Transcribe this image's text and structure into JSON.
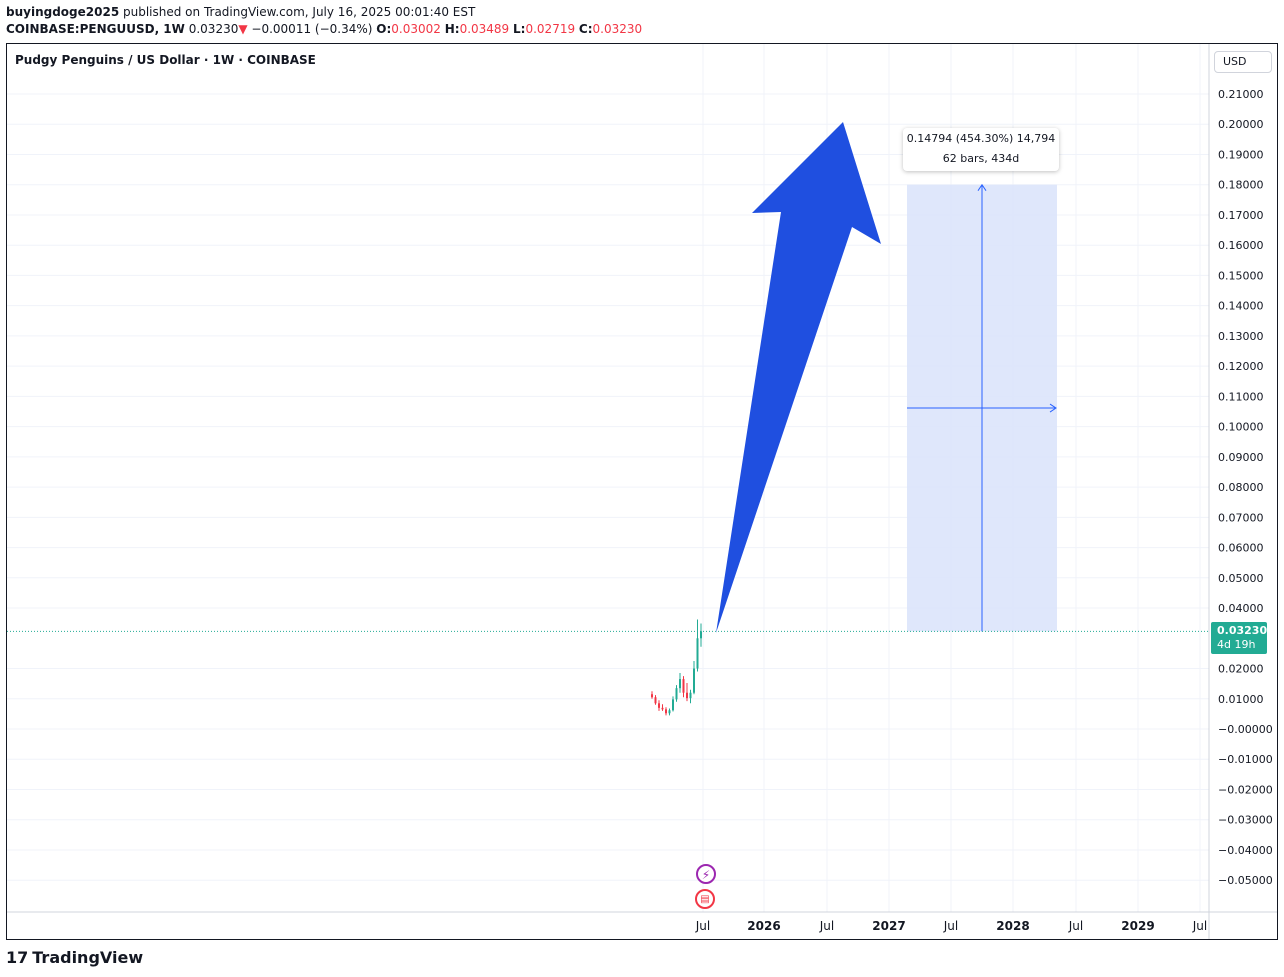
{
  "header": {
    "publisher": "buyingdoge2025",
    "published_text": "published on TradingView.com, July 16, 2025 00:01:40 EST",
    "symbol": "COINBASE:PENGUUSD, 1W",
    "last": "0.03230",
    "change_arrow": "▼",
    "change": "−0.00011 (−0.34%)",
    "o_label": "O:",
    "o_value": "0.03002",
    "h_label": "H:",
    "h_value": "0.03489",
    "l_label": "L:",
    "l_value": "0.02719",
    "c_label": "C:",
    "c_value": "0.03230"
  },
  "legend": {
    "title": "Pudgy Penguins / US Dollar · 1W · COINBASE"
  },
  "currency_button": "USD",
  "price_badge": {
    "price": "0.03230",
    "countdown": "4d 19h"
  },
  "measure": {
    "line1": "0.14794 (454.30%) 14,794",
    "line2": "62 bars, 434d"
  },
  "event_icons": [
    "lightning-icon",
    "us-flag-icon"
  ],
  "footer": {
    "brand": "TradingView",
    "logo_mark": "17"
  },
  "colors": {
    "up": "#22ab94",
    "down": "#f23645",
    "arrow": "#1f4fe0",
    "measure_fill": "#dbe4fb",
    "measure_line": "#2962ff"
  },
  "chart_data": {
    "type": "candlestick",
    "title": "Pudgy Penguins / US Dollar · 1W · COINBASE",
    "y_ticks": [
      "0.21000",
      "0.20000",
      "0.19000",
      "0.18000",
      "0.17000",
      "0.16000",
      "0.15000",
      "0.14000",
      "0.13000",
      "0.12000",
      "0.11000",
      "0.10000",
      "0.09000",
      "0.08000",
      "0.07000",
      "0.06000",
      "0.05000",
      "0.04000",
      "0.02000",
      "0.01000",
      "−0.00000",
      "−0.01000",
      "−0.02000",
      "−0.03000",
      "−0.04000",
      "−0.05000"
    ],
    "y_tick_values": [
      0.21,
      0.2,
      0.19,
      0.18,
      0.17,
      0.16,
      0.15,
      0.14,
      0.13,
      0.12,
      0.11,
      0.1,
      0.09,
      0.08,
      0.07,
      0.06,
      0.05,
      0.04,
      0.02,
      0.01,
      0.0,
      -0.01,
      -0.02,
      -0.03,
      -0.04,
      -0.05
    ],
    "ylim": [
      -0.06,
      0.22
    ],
    "x_ticks": [
      "Jul",
      "2026",
      "Jul",
      "2027",
      "Jul",
      "2028",
      "Jul",
      "2029",
      "Jul"
    ],
    "x_tick_dates": [
      "2025-07-01",
      "2026-01-01",
      "2026-07-01",
      "2027-01-01",
      "2027-07-01",
      "2028-01-01",
      "2028-07-01",
      "2029-01-01",
      "2029-07-01"
    ],
    "last_price": 0.0323,
    "candles": [
      {
        "o": 0.0115,
        "h": 0.0125,
        "l": 0.01,
        "c": 0.0105
      },
      {
        "o": 0.0105,
        "h": 0.0112,
        "l": 0.008,
        "c": 0.0085
      },
      {
        "o": 0.0085,
        "h": 0.0095,
        "l": 0.006,
        "c": 0.007
      },
      {
        "o": 0.007,
        "h": 0.0082,
        "l": 0.006,
        "c": 0.0065
      },
      {
        "o": 0.0065,
        "h": 0.0072,
        "l": 0.0045,
        "c": 0.0052
      },
      {
        "o": 0.0052,
        "h": 0.0068,
        "l": 0.0045,
        "c": 0.0062
      },
      {
        "o": 0.0062,
        "h": 0.0108,
        "l": 0.0058,
        "c": 0.0098
      },
      {
        "o": 0.0098,
        "h": 0.0145,
        "l": 0.009,
        "c": 0.0135
      },
      {
        "o": 0.0135,
        "h": 0.0185,
        "l": 0.012,
        "c": 0.0165
      },
      {
        "o": 0.0165,
        "h": 0.0175,
        "l": 0.0105,
        "c": 0.012
      },
      {
        "o": 0.012,
        "h": 0.0152,
        "l": 0.0092,
        "c": 0.0102
      },
      {
        "o": 0.0102,
        "h": 0.013,
        "l": 0.0085,
        "c": 0.012
      },
      {
        "o": 0.012,
        "h": 0.0225,
        "l": 0.0115,
        "c": 0.02
      },
      {
        "o": 0.02,
        "h": 0.0362,
        "l": 0.019,
        "c": 0.03
      },
      {
        "o": 0.03,
        "h": 0.0349,
        "l": 0.0272,
        "c": 0.0323
      }
    ],
    "measure_range": {
      "from": 0.0323,
      "to": 0.18
    }
  }
}
